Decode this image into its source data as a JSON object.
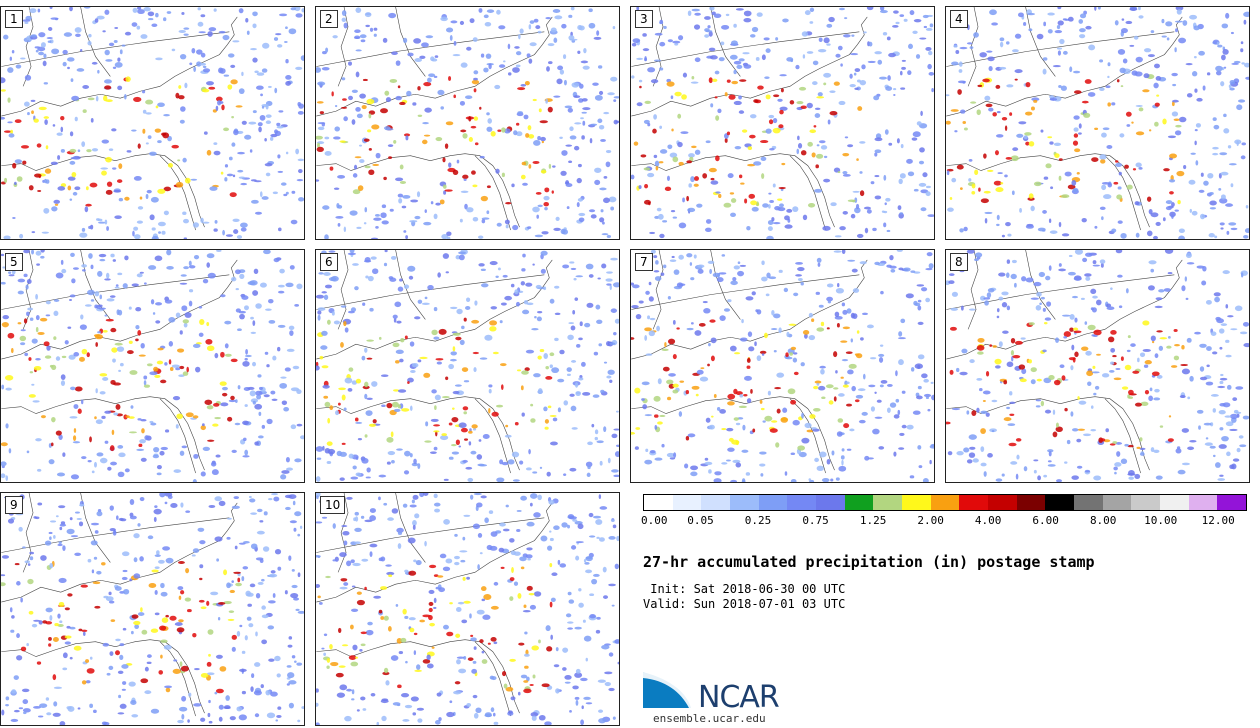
{
  "panels": [
    {
      "label": "1"
    },
    {
      "label": "2"
    },
    {
      "label": "3"
    },
    {
      "label": "4"
    },
    {
      "label": "5"
    },
    {
      "label": "6"
    },
    {
      "label": "7"
    },
    {
      "label": "8"
    },
    {
      "label": "9"
    },
    {
      "label": "10"
    }
  ],
  "colorbar": {
    "colors": [
      "#ffffff",
      "#e8f1ff",
      "#d0e0fe",
      "#9cbcfa",
      "#7e9ef6",
      "#7488f4",
      "#6c78ec",
      "#10a01f",
      "#b2d680",
      "#fff81b",
      "#f9a011",
      "#e10a0a",
      "#c40000",
      "#7b0000",
      "#000000",
      "#737373",
      "#a4a4a4",
      "#cacaca",
      "#f0f0f0",
      "#dfb0ef",
      "#9314d8"
    ],
    "ticks": [
      "0.00",
      "0.05",
      "0.25",
      "0.75",
      "1.25",
      "2.00",
      "4.00",
      "6.00",
      "8.00",
      "10.00",
      "12.00"
    ]
  },
  "title": "27-hr accumulated precipitation (in) postage stamp",
  "init": " Init: Sat 2018-06-30 00 UTC",
  "valid": "Valid: Sun 2018-07-01 03 UTC",
  "logo": {
    "text": "NCAR",
    "url": "ensemble.ucar.edu"
  }
}
